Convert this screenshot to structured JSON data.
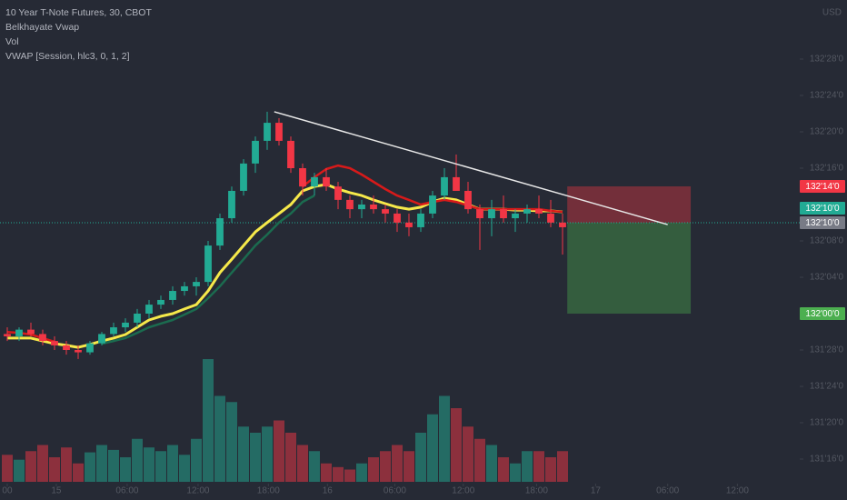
{
  "chart_data": {
    "type": "candlestick",
    "legend": [
      "10 Year T-Note Futures, 30, CBOT",
      "Belkhayate Vwap",
      "Vol",
      "VWAP [Session, hlc3, 0, 1, 2]"
    ],
    "currency": "USD",
    "x": [
      0,
      1,
      2,
      3,
      4,
      5,
      6,
      7,
      8,
      9,
      10,
      11,
      12,
      13,
      14,
      15,
      16,
      17,
      18,
      19,
      20,
      21,
      22,
      23,
      24,
      25,
      26,
      27,
      28,
      29,
      30,
      31,
      32,
      33,
      34,
      35,
      36,
      37,
      38,
      39,
      40,
      41,
      42,
      43,
      44,
      45,
      46,
      47
    ],
    "open": [
      131.93,
      131.922,
      131.945,
      131.93,
      131.906,
      131.891,
      131.875,
      131.867,
      131.898,
      131.93,
      131.953,
      131.969,
      132.0,
      132.031,
      132.047,
      132.078,
      132.094,
      132.109,
      132.234,
      132.328,
      132.422,
      132.516,
      132.594,
      132.656,
      132.594,
      132.5,
      132.437,
      132.469,
      132.437,
      132.391,
      132.359,
      132.375,
      132.359,
      132.344,
      132.313,
      132.297,
      132.344,
      132.406,
      132.469,
      132.422,
      132.359,
      132.328,
      132.359,
      132.328,
      132.344,
      132.359,
      132.344,
      132.313
    ],
    "high": [
      131.953,
      131.953,
      131.969,
      131.945,
      131.922,
      131.906,
      131.891,
      131.906,
      131.937,
      131.969,
      131.984,
      132.016,
      132.047,
      132.062,
      132.094,
      132.109,
      132.125,
      132.25,
      132.344,
      132.437,
      132.531,
      132.609,
      132.694,
      132.672,
      132.609,
      132.516,
      132.484,
      132.5,
      132.453,
      132.406,
      132.391,
      132.406,
      132.375,
      132.359,
      132.344,
      132.359,
      132.422,
      132.5,
      132.547,
      132.453,
      132.375,
      132.391,
      132.406,
      132.359,
      132.375,
      132.406,
      132.391,
      132.344
    ],
    "low": [
      131.906,
      131.906,
      131.922,
      131.891,
      131.875,
      131.859,
      131.844,
      131.859,
      131.891,
      131.922,
      131.937,
      131.953,
      131.984,
      132.016,
      132.031,
      132.062,
      132.062,
      132.094,
      132.219,
      132.313,
      132.406,
      132.484,
      132.563,
      132.578,
      132.484,
      132.406,
      132.406,
      132.422,
      132.359,
      132.328,
      132.328,
      132.344,
      132.313,
      132.281,
      132.266,
      132.281,
      132.328,
      132.391,
      132.437,
      132.344,
      132.219,
      132.266,
      132.313,
      132.281,
      132.313,
      132.328,
      132.297,
      132.203
    ],
    "close": [
      131.922,
      131.945,
      131.93,
      131.906,
      131.891,
      131.875,
      131.867,
      131.898,
      131.93,
      131.953,
      131.969,
      132.0,
      132.031,
      132.047,
      132.078,
      132.094,
      132.109,
      132.234,
      132.328,
      132.422,
      132.516,
      132.594,
      132.656,
      132.594,
      132.5,
      132.437,
      132.469,
      132.437,
      132.391,
      132.359,
      132.375,
      132.359,
      132.344,
      132.313,
      132.297,
      132.344,
      132.406,
      132.469,
      132.422,
      132.359,
      132.328,
      132.359,
      132.328,
      132.344,
      132.359,
      132.344,
      132.313,
      132.297
    ],
    "up_color": "#22ab94",
    "down_color": "#f23645",
    "volume": {
      "axis": "y2",
      "values": [
        22,
        18,
        25,
        30,
        20,
        28,
        15,
        24,
        30,
        26,
        20,
        35,
        28,
        25,
        30,
        22,
        35,
        100,
        70,
        65,
        45,
        40,
        45,
        50,
        40,
        30,
        25,
        15,
        12,
        10,
        15,
        20,
        25,
        30,
        25,
        40,
        55,
        70,
        60,
        45,
        35,
        30,
        20,
        15,
        25,
        25,
        20,
        25
      ]
    },
    "y2lim": [
      0,
      100
    ],
    "series": [
      {
        "color": "#f6e94a",
        "values": [
          131.916,
          131.916,
          131.916,
          131.906,
          131.897,
          131.891,
          131.884,
          131.894,
          131.906,
          131.916,
          131.928,
          131.953,
          131.978,
          131.991,
          132.0,
          132.016,
          132.031,
          132.078,
          132.141,
          132.187,
          132.234,
          132.281,
          132.313,
          132.344,
          132.375,
          132.422,
          132.437,
          132.444,
          132.428,
          132.416,
          132.406,
          132.391,
          132.378,
          132.366,
          132.359,
          132.366,
          132.384,
          132.397,
          132.391,
          132.375,
          132.359,
          132.359,
          132.359,
          132.356,
          132.356,
          132.353,
          132.353,
          132.35
        ]
      },
      {
        "color": "#d71a1a",
        "values": [
          131.937,
          131.934,
          131.928,
          131.916,
          131.903,
          null,
          null,
          null,
          null,
          null,
          null,
          null,
          null,
          null,
          null,
          null,
          null,
          null,
          null,
          null,
          null,
          null,
          null,
          null,
          null,
          132.437,
          132.469,
          132.497,
          132.509,
          132.5,
          132.478,
          132.453,
          132.428,
          132.406,
          132.391,
          132.375,
          132.384,
          132.391,
          132.384,
          132.372,
          132.359,
          132.359,
          132.359,
          132.359,
          132.359,
          132.359,
          132.353,
          132.35
        ]
      },
      {
        "color": "#1b6b4f",
        "values": [
          null,
          null,
          null,
          null,
          null,
          null,
          null,
          null,
          131.897,
          131.906,
          131.916,
          131.934,
          131.953,
          131.966,
          131.978,
          131.997,
          132.016,
          132.053,
          132.094,
          132.141,
          132.187,
          132.234,
          132.272,
          132.313,
          132.344,
          132.384,
          132.406,
          null,
          null,
          null,
          null,
          null,
          null,
          null,
          null,
          null,
          null,
          null,
          null,
          null,
          null,
          null,
          null,
          null,
          null,
          null,
          null,
          null
        ]
      }
    ],
    "trendline": {
      "color": "#e8e8e8",
      "x": [
        22.6,
        55.9
      ],
      "y": [
        132.694,
        132.306
      ]
    },
    "position": {
      "x": [
        47.4,
        57.85
      ],
      "stop": 132.4375,
      "entry": 132.3125,
      "target": 132.0
    },
    "last_price": 132.3125,
    "price_labels": [
      {
        "value": 132.4375,
        "label": "132'14'0",
        "color": "#f23645"
      },
      {
        "value": 132.3125,
        "label": "132'10'0",
        "color": "#787b86"
      },
      {
        "value": 132.3125,
        "label": "132'10'0",
        "color": "#22ab94"
      },
      {
        "value": 132.0,
        "label": "132'00'0",
        "color": "#4caf50"
      }
    ],
    "xlim": [
      -0.615,
      71.077
    ],
    "ylim": [
      131.359375,
      133.078125
    ],
    "yticks": [
      {
        "value": 131.5,
        "label": "131'16'0"
      },
      {
        "value": 131.625,
        "label": "131'20'0"
      },
      {
        "value": 131.75,
        "label": "131'24'0"
      },
      {
        "value": 131.875,
        "label": "131'28'0"
      },
      {
        "value": 132.125,
        "label": "132'04'0"
      },
      {
        "value": 132.25,
        "label": "132'08'0"
      },
      {
        "value": 132.5,
        "label": "132'16'0"
      },
      {
        "value": 132.625,
        "label": "132'20'0"
      },
      {
        "value": 132.75,
        "label": "132'24'0"
      },
      {
        "value": 132.875,
        "label": "132'28'0"
      }
    ],
    "xticks": [
      {
        "value": 0,
        "label": "00"
      },
      {
        "value": 4.15,
        "label": "15"
      },
      {
        "value": 10.15,
        "label": "06:00"
      },
      {
        "value": 16.15,
        "label": "12:00"
      },
      {
        "value": 22.1,
        "label": "18:00"
      },
      {
        "value": 27.1,
        "label": "16"
      },
      {
        "value": 32.8,
        "label": "06:00"
      },
      {
        "value": 38.6,
        "label": "12:00"
      },
      {
        "value": 44.8,
        "label": "18:00"
      },
      {
        "value": 49.8,
        "label": "17"
      },
      {
        "value": 55.9,
        "label": "06:00"
      },
      {
        "value": 61.8,
        "label": "12:00"
      }
    ]
  }
}
